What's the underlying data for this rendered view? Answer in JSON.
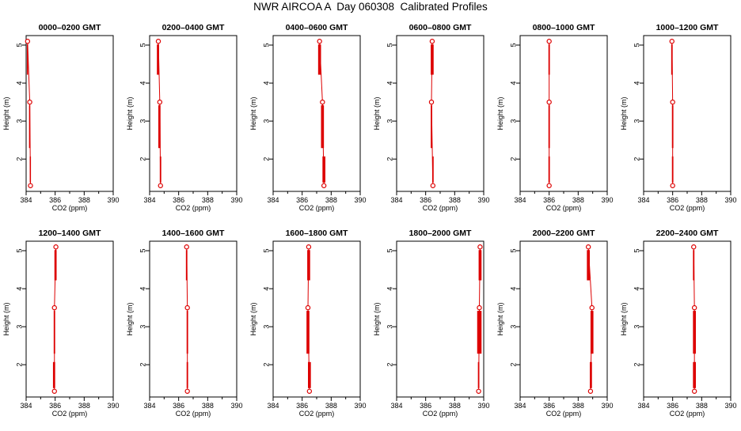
{
  "title": "NWR AIRCOA A  Day 060308  Calibrated Profiles",
  "colors": {
    "profile": "#dd0000",
    "axes": "#000000",
    "background": "#ffffff"
  },
  "chart_data": [
    {
      "type": "line",
      "title": "0000–0200 GMT",
      "xlabel": "CO2 (ppm)",
      "ylabel": "Height (m)",
      "xlim": [
        384,
        390
      ],
      "ylim": [
        1.15,
        5.25
      ],
      "xticks": [
        "384",
        "386",
        "388",
        "390"
      ],
      "yticks": [
        "2",
        "3",
        "4",
        "5"
      ],
      "x": [
        384.1,
        384.25,
        384.3
      ],
      "y": [
        5.1,
        3.5,
        1.3
      ],
      "bars": [
        [
          384.05,
          384.1
        ],
        [
          384.2,
          384.25
        ],
        [
          384.25,
          384.3
        ]
      ]
    },
    {
      "type": "line",
      "title": "0200–0400 GMT",
      "xlabel": "CO2 (ppm)",
      "ylabel": "Height (m)",
      "xlim": [
        384,
        390
      ],
      "ylim": [
        1.15,
        5.25
      ],
      "xticks": [
        "384",
        "386",
        "388",
        "390"
      ],
      "yticks": [
        "2",
        "3",
        "4",
        "5"
      ],
      "x": [
        384.6,
        384.7,
        384.75
      ],
      "y": [
        5.1,
        3.5,
        1.3
      ],
      "bars": [
        [
          384.5,
          384.65
        ],
        [
          384.6,
          384.75
        ],
        [
          384.7,
          384.8
        ]
      ]
    },
    {
      "type": "line",
      "title": "0400–0600 GMT",
      "xlabel": "CO2 (ppm)",
      "ylabel": "Height (m)",
      "xlim": [
        384,
        390
      ],
      "ylim": [
        1.15,
        5.25
      ],
      "xticks": [
        "384",
        "386",
        "388",
        "390"
      ],
      "yticks": [
        "2",
        "3",
        "4",
        "5"
      ],
      "x": [
        387.2,
        387.4,
        387.5
      ],
      "y": [
        5.1,
        3.5,
        1.3
      ],
      "bars": [
        [
          387.1,
          387.3
        ],
        [
          387.3,
          387.5
        ],
        [
          387.4,
          387.6
        ]
      ]
    },
    {
      "type": "line",
      "title": "0600–0800 GMT",
      "xlabel": "CO2 (ppm)",
      "ylabel": "Height (m)",
      "xlim": [
        384,
        390
      ],
      "ylim": [
        1.15,
        5.25
      ],
      "xticks": [
        "384",
        "386",
        "388",
        "390"
      ],
      "yticks": [
        "2",
        "3",
        "4",
        "5"
      ],
      "x": [
        386.45,
        386.4,
        386.5
      ],
      "y": [
        5.1,
        3.5,
        1.3
      ],
      "bars": [
        [
          386.35,
          386.55
        ],
        [
          386.35,
          386.45
        ],
        [
          386.45,
          386.55
        ]
      ]
    },
    {
      "type": "line",
      "title": "0800–1000 GMT",
      "xlabel": "CO2 (ppm)",
      "ylabel": "Height (m)",
      "xlim": [
        384,
        390
      ],
      "ylim": [
        1.15,
        5.25
      ],
      "xticks": [
        "384",
        "386",
        "388",
        "390"
      ],
      "yticks": [
        "2",
        "3",
        "4",
        "5"
      ],
      "x": [
        386,
        386,
        386
      ],
      "y": [
        5.1,
        3.5,
        1.3
      ],
      "bars": [
        [
          385.95,
          386.05
        ],
        [
          385.95,
          386.05
        ],
        [
          385.95,
          386.05
        ]
      ]
    },
    {
      "type": "line",
      "title": "1000–1200 GMT",
      "xlabel": "CO2 (ppm)",
      "ylabel": "Height (m)",
      "xlim": [
        384,
        390
      ],
      "ylim": [
        1.15,
        5.25
      ],
      "xticks": [
        "384",
        "386",
        "388",
        "390"
      ],
      "yticks": [
        "2",
        "3",
        "4",
        "5"
      ],
      "x": [
        385.95,
        386,
        386
      ],
      "y": [
        5.1,
        3.5,
        1.3
      ],
      "bars": [
        [
          385.9,
          386.0
        ],
        [
          385.95,
          386.05
        ],
        [
          385.95,
          386.05
        ]
      ]
    },
    {
      "type": "line",
      "title": "1200–1400 GMT",
      "xlabel": "CO2 (ppm)",
      "ylabel": "Height (m)",
      "xlim": [
        384,
        390
      ],
      "ylim": [
        1.15,
        5.25
      ],
      "xticks": [
        "384",
        "386",
        "388",
        "390"
      ],
      "yticks": [
        "2",
        "3",
        "4",
        "5"
      ],
      "x": [
        386.05,
        385.95,
        385.95
      ],
      "y": [
        5.1,
        3.5,
        1.3
      ],
      "bars": [
        [
          385.95,
          386.1
        ],
        [
          385.9,
          386.0
        ],
        [
          385.85,
          386.0
        ]
      ]
    },
    {
      "type": "line",
      "title": "1400–1600 GMT",
      "xlabel": "CO2 (ppm)",
      "ylabel": "Height (m)",
      "xlim": [
        384,
        390
      ],
      "ylim": [
        1.15,
        5.25
      ],
      "xticks": [
        "384",
        "386",
        "388",
        "390"
      ],
      "yticks": [
        "2",
        "3",
        "4",
        "5"
      ],
      "x": [
        386.55,
        386.6,
        386.6
      ],
      "y": [
        5.1,
        3.5,
        1.3
      ],
      "bars": [
        [
          386.5,
          386.6
        ],
        [
          386.55,
          386.65
        ],
        [
          386.55,
          386.65
        ]
      ]
    },
    {
      "type": "line",
      "title": "1600–1800 GMT",
      "xlabel": "CO2 (ppm)",
      "ylabel": "Height (m)",
      "xlim": [
        384,
        390
      ],
      "ylim": [
        1.15,
        5.25
      ],
      "xticks": [
        "384",
        "386",
        "388",
        "390"
      ],
      "yticks": [
        "2",
        "3",
        "4",
        "5"
      ],
      "x": [
        386.45,
        386.4,
        386.5
      ],
      "y": [
        5.1,
        3.5,
        1.3
      ],
      "bars": [
        [
          386.35,
          386.55
        ],
        [
          386.3,
          386.5
        ],
        [
          386.4,
          386.6
        ]
      ]
    },
    {
      "type": "line",
      "title": "1800–2000 GMT",
      "xlabel": "CO2 (ppm)",
      "ylabel": "Height (m)",
      "xlim": [
        384,
        390
      ],
      "ylim": [
        1.15,
        5.25
      ],
      "xticks": [
        "384",
        "386",
        "388",
        "390"
      ],
      "yticks": [
        "2",
        "3",
        "4",
        "5"
      ],
      "x": [
        389.75,
        389.7,
        389.65
      ],
      "y": [
        5.1,
        3.5,
        1.3
      ],
      "bars": [
        [
          389.65,
          389.85
        ],
        [
          389.55,
          389.85
        ],
        [
          389.6,
          389.7
        ]
      ]
    },
    {
      "type": "line",
      "title": "2000–2200 GMT",
      "xlabel": "CO2 (ppm)",
      "ylabel": "Height (m)",
      "xlim": [
        384,
        390
      ],
      "ylim": [
        1.15,
        5.25
      ],
      "xticks": [
        "384",
        "386",
        "388",
        "390"
      ],
      "yticks": [
        "2",
        "3",
        "4",
        "5"
      ],
      "x": [
        388.7,
        388.95,
        388.85
      ],
      "y": [
        5.1,
        3.5,
        1.3
      ],
      "bars": [
        [
          388.6,
          388.8
        ],
        [
          388.85,
          389.05
        ],
        [
          388.8,
          388.95
        ]
      ]
    },
    {
      "type": "line",
      "title": "2200–2400 GMT",
      "xlabel": "CO2 (ppm)",
      "ylabel": "Height (m)",
      "xlim": [
        384,
        390
      ],
      "ylim": [
        1.15,
        5.25
      ],
      "xticks": [
        "384",
        "386",
        "388",
        "390"
      ],
      "yticks": [
        "2",
        "3",
        "4",
        "5"
      ],
      "x": [
        387.45,
        387.5,
        387.5
      ],
      "y": [
        5.1,
        3.5,
        1.3
      ],
      "bars": [
        [
          387.4,
          387.5
        ],
        [
          387.4,
          387.6
        ],
        [
          387.4,
          387.6
        ]
      ]
    }
  ]
}
